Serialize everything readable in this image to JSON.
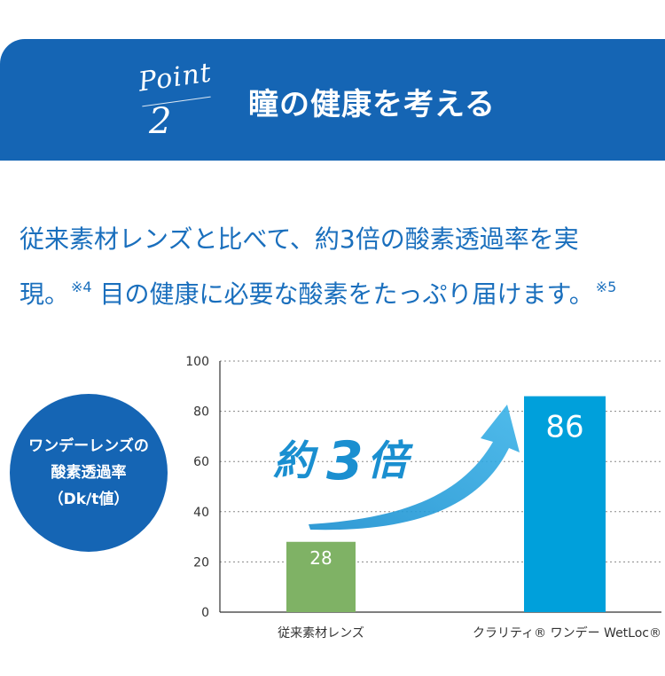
{
  "banner": {
    "point_word": "Point",
    "point_num": "2",
    "title": "瞳の健康を考える"
  },
  "description": {
    "line1": "従来素材レンズと比べて、約3倍の酸素透過率を実",
    "line2_a": "現。",
    "note_a": "※4",
    "line2_b": " 目の健康に必要な酸素をたっぷり届けます。",
    "note_b": "※5"
  },
  "badge": {
    "line1": "ワンデーレンズの",
    "line2": "酸素透過率",
    "line3": "（Dk/t値）"
  },
  "callout": {
    "prefix": "約",
    "number": "3",
    "suffix": "倍"
  },
  "chart_data": {
    "type": "bar",
    "categories": [
      "従来素材レンズ",
      "クラリティ® ワンデー WetLoc®"
    ],
    "values": [
      28,
      86
    ],
    "value_labels": [
      "28",
      "86"
    ],
    "colors": [
      "#7fb265",
      "#00a0db"
    ],
    "ylim": [
      0,
      100
    ],
    "yticks": [
      0,
      20,
      40,
      60,
      80,
      100
    ],
    "grid": true,
    "title": "",
    "xlabel": "",
    "ylabel": ""
  }
}
